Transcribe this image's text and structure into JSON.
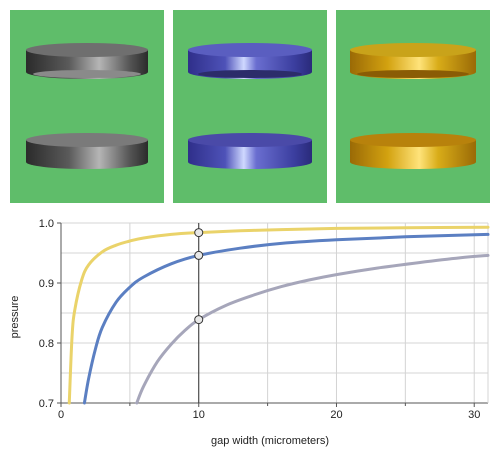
{
  "panels": [
    {
      "material": "rough-steel",
      "top_color": "#6f6f6f",
      "side_dark": "#2b2b2b",
      "side_light": "#b5b5b5"
    },
    {
      "material": "blue-anodized",
      "top_color": "#5a5ec0",
      "side_dark": "#2f2f8a",
      "side_light": "#cfd8ff"
    },
    {
      "material": "gold",
      "top_color": "#c9a31a",
      "side_dark": "#9a6a06",
      "side_light": "#ffe37a"
    }
  ],
  "panel_background": "#5fbd6a",
  "chart_data": {
    "type": "line",
    "xlabel": "gap width (micrometers)",
    "ylabel": "pressure",
    "xlim": [
      0,
      31
    ],
    "ylim": [
      0.7,
      1.0
    ],
    "xticks": [
      "0",
      "10",
      "20",
      "30"
    ],
    "yticks": [
      "0.7",
      "0.8",
      "0.9",
      "1.0"
    ],
    "grid": true,
    "marker_x": 10,
    "series": [
      {
        "color": "#ead36a",
        "x": [
          0.6,
          0.8,
          1,
          1.5,
          2,
          3,
          4,
          5,
          6,
          8,
          10,
          13,
          16,
          20,
          25,
          31
        ],
        "y": [
          0.7,
          0.81,
          0.855,
          0.905,
          0.93,
          0.952,
          0.963,
          0.97,
          0.975,
          0.981,
          0.984,
          0.987,
          0.989,
          0.991,
          0.992,
          0.993
        ]
      },
      {
        "color": "#5b7fc2",
        "x": [
          1.7,
          2,
          2.5,
          3,
          4,
          5,
          6,
          8,
          10,
          13,
          16,
          20,
          25,
          31
        ],
        "y": [
          0.7,
          0.74,
          0.79,
          0.826,
          0.868,
          0.893,
          0.91,
          0.932,
          0.946,
          0.958,
          0.966,
          0.972,
          0.977,
          0.981
        ]
      },
      {
        "color": "#a6a6ba",
        "x": [
          5.5,
          6,
          7,
          8,
          9,
          10,
          12,
          14,
          16,
          18,
          20,
          23,
          26,
          29,
          31
        ],
        "y": [
          0.7,
          0.728,
          0.769,
          0.798,
          0.821,
          0.839,
          0.863,
          0.88,
          0.894,
          0.905,
          0.914,
          0.925,
          0.934,
          0.942,
          0.946
        ]
      }
    ],
    "markers": [
      {
        "x": 10,
        "y": 0.984
      },
      {
        "x": 10,
        "y": 0.946
      },
      {
        "x": 10,
        "y": 0.839
      }
    ]
  }
}
